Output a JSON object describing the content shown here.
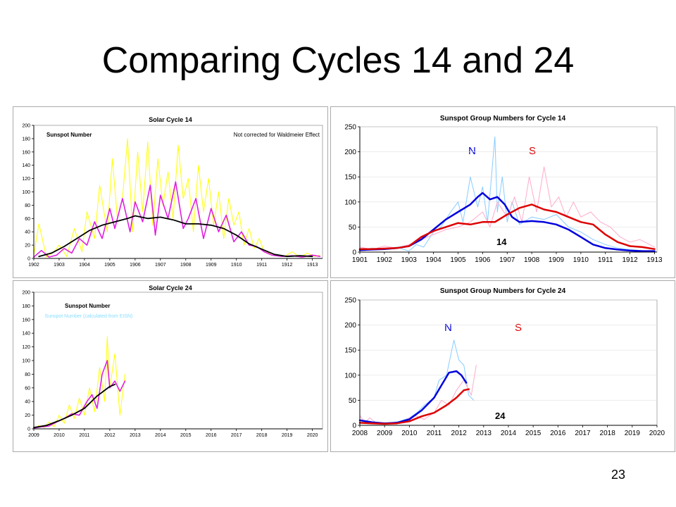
{
  "slide": {
    "title": "Comparing Cycles 14 and 24",
    "page_number": "23"
  },
  "colors": {
    "yellow": "#ffff00",
    "magenta": "#e020e0",
    "black": "#000000",
    "north": "#0000dd",
    "south": "#dd0000",
    "north_light": "#88ccff",
    "south_light": "#ffaacc"
  },
  "chart_data": [
    {
      "id": "c14",
      "type": "line",
      "title": "Solar Cycle 14",
      "series_label": "Sunspot Number",
      "note": "Not corrected for Waldmeier Effect",
      "sublabel": "",
      "xlim": [
        1902,
        1913.4
      ],
      "ylim": [
        0,
        200
      ],
      "x_ticks": [
        1902,
        1903,
        1904,
        1905,
        1906,
        1907,
        1908,
        1909,
        1910,
        1911,
        1912,
        1913
      ],
      "y_ticks": [
        0,
        20,
        40,
        60,
        80,
        100,
        120,
        140,
        160,
        180,
        200
      ],
      "series": [
        {
          "role": "daily",
          "x": [
            1902.0,
            1902.2,
            1902.5,
            1902.8,
            1903.0,
            1903.3,
            1903.6,
            1903.9,
            1904.1,
            1904.4,
            1904.6,
            1904.9,
            1905.1,
            1905.3,
            1905.5,
            1905.7,
            1905.9,
            1906.1,
            1906.3,
            1906.5,
            1906.7,
            1906.9,
            1907.1,
            1907.3,
            1907.5,
            1907.7,
            1907.9,
            1908.1,
            1908.3,
            1908.5,
            1908.7,
            1908.9,
            1909.1,
            1909.3,
            1909.5,
            1909.7,
            1909.9,
            1910.1,
            1910.3,
            1910.5,
            1910.7,
            1910.9,
            1911.1,
            1911.3,
            1911.6,
            1911.9,
            1912.2,
            1912.5,
            1912.8,
            1913.1,
            1913.3
          ],
          "y": [
            5,
            52,
            2,
            10,
            20,
            3,
            45,
            10,
            70,
            30,
            110,
            40,
            150,
            60,
            90,
            180,
            40,
            160,
            70,
            175,
            50,
            150,
            80,
            130,
            60,
            170,
            90,
            120,
            40,
            140,
            70,
            120,
            50,
            100,
            30,
            90,
            50,
            70,
            20,
            45,
            15,
            30,
            10,
            8,
            5,
            3,
            10,
            2,
            8,
            3,
            5
          ]
        },
        {
          "role": "monthly",
          "x": [
            1902.0,
            1902.3,
            1902.6,
            1902.9,
            1903.2,
            1903.5,
            1903.8,
            1904.1,
            1904.4,
            1904.7,
            1905.0,
            1905.2,
            1905.5,
            1905.8,
            1906.0,
            1906.3,
            1906.6,
            1906.8,
            1907.0,
            1907.3,
            1907.6,
            1907.9,
            1908.1,
            1908.4,
            1908.7,
            1909.0,
            1909.3,
            1909.6,
            1909.9,
            1910.2,
            1910.5,
            1910.8,
            1911.1,
            1911.4,
            1911.8,
            1912.2,
            1912.6,
            1913.0,
            1913.3
          ],
          "y": [
            2,
            12,
            2,
            5,
            15,
            8,
            30,
            20,
            55,
            30,
            75,
            45,
            90,
            40,
            85,
            55,
            110,
            35,
            95,
            60,
            115,
            45,
            60,
            90,
            30,
            75,
            40,
            65,
            25,
            40,
            20,
            18,
            10,
            5,
            3,
            4,
            2,
            5,
            3
          ]
        },
        {
          "role": "smoothed",
          "x": [
            1902.2,
            1902.7,
            1903.2,
            1903.7,
            1904.2,
            1904.7,
            1905.2,
            1905.7,
            1906.0,
            1906.5,
            1907.0,
            1907.5,
            1908.0,
            1908.5,
            1909.0,
            1909.5,
            1910.0,
            1910.5,
            1911.0,
            1911.5,
            1912.0,
            1912.5,
            1913.0
          ],
          "y": [
            3,
            8,
            18,
            30,
            42,
            50,
            55,
            60,
            64,
            60,
            62,
            58,
            52,
            52,
            50,
            45,
            35,
            22,
            14,
            6,
            3,
            4,
            3
          ]
        }
      ]
    },
    {
      "id": "g14",
      "type": "line",
      "title": "Sunspot Group Numbers for Cycle 14",
      "cycle_label": "14",
      "north_label": "N",
      "south_label": "S",
      "xlim": [
        1901,
        1913.1
      ],
      "ylim": [
        0,
        250
      ],
      "x_ticks": [
        1901,
        1902,
        1903,
        1904,
        1905,
        1906,
        1907,
        1908,
        1909,
        1910,
        1911,
        1912,
        1913
      ],
      "y_ticks": [
        0,
        50,
        100,
        150,
        200,
        250
      ],
      "series": [
        {
          "role": "north_raw",
          "x": [
            1901.0,
            1901.5,
            1902.0,
            1902.5,
            1903.0,
            1903.3,
            1903.6,
            1904.0,
            1904.3,
            1904.7,
            1905.0,
            1905.2,
            1905.5,
            1905.8,
            1906.0,
            1906.2,
            1906.5,
            1906.6,
            1906.8,
            1907.0,
            1907.2,
            1907.5,
            1908.0,
            1908.5,
            1909.0,
            1909.5,
            1910.0,
            1910.5,
            1911.0,
            1911.5,
            1912.0,
            1912.5,
            1913.0
          ],
          "y": [
            3,
            8,
            5,
            10,
            2,
            15,
            10,
            40,
            50,
            80,
            100,
            60,
            150,
            90,
            130,
            60,
            230,
            80,
            150,
            60,
            100,
            55,
            70,
            65,
            75,
            50,
            40,
            25,
            15,
            8,
            5,
            3,
            2
          ]
        },
        {
          "role": "south_raw",
          "x": [
            1901.0,
            1901.5,
            1902.0,
            1902.5,
            1903.0,
            1903.5,
            1904.0,
            1904.5,
            1905.0,
            1905.5,
            1906.0,
            1906.3,
            1906.6,
            1907.0,
            1907.3,
            1907.6,
            1907.9,
            1908.2,
            1908.5,
            1908.8,
            1909.1,
            1909.4,
            1909.7,
            1910.0,
            1910.4,
            1910.8,
            1911.2,
            1911.6,
            1912.0,
            1912.4,
            1912.8,
            1913.0
          ],
          "y": [
            10,
            5,
            12,
            8,
            15,
            25,
            35,
            45,
            50,
            60,
            80,
            50,
            100,
            70,
            110,
            60,
            150,
            80,
            170,
            90,
            110,
            70,
            100,
            70,
            80,
            60,
            50,
            30,
            20,
            25,
            15,
            10
          ]
        },
        {
          "role": "north_smoothed",
          "x": [
            1901.0,
            1901.5,
            1902.0,
            1902.5,
            1903.0,
            1903.5,
            1904.0,
            1904.5,
            1905.0,
            1905.5,
            1905.8,
            1906.0,
            1906.3,
            1906.6,
            1906.9,
            1907.2,
            1907.5,
            1908.0,
            1908.5,
            1909.0,
            1909.5,
            1910.0,
            1910.5,
            1911.0,
            1911.5,
            1912.0,
            1912.5,
            1913.0
          ],
          "y": [
            4,
            5,
            6,
            8,
            12,
            25,
            45,
            65,
            80,
            95,
            110,
            118,
            105,
            110,
            95,
            70,
            60,
            62,
            60,
            55,
            45,
            30,
            15,
            8,
            5,
            3,
            2,
            2
          ]
        },
        {
          "role": "south_smoothed",
          "x": [
            1901.0,
            1901.5,
            1902.0,
            1902.5,
            1903.0,
            1903.5,
            1904.0,
            1904.5,
            1905.0,
            1905.5,
            1906.0,
            1906.5,
            1907.0,
            1907.5,
            1908.0,
            1908.5,
            1909.0,
            1909.5,
            1910.0,
            1910.5,
            1911.0,
            1911.5,
            1912.0,
            1912.5,
            1913.0
          ],
          "y": [
            6,
            6,
            7,
            8,
            12,
            30,
            42,
            50,
            58,
            55,
            60,
            60,
            75,
            88,
            95,
            85,
            80,
            70,
            60,
            55,
            35,
            20,
            12,
            10,
            6
          ]
        }
      ]
    },
    {
      "id": "c24",
      "type": "line",
      "title": "Solar Cycle 24",
      "series_label": "Sunspot Number",
      "note": "",
      "sublabel": "Sunspot Number (calculated from EISN)",
      "xlim": [
        2009,
        2020.4
      ],
      "ylim": [
        0,
        200
      ],
      "x_ticks": [
        2009,
        2010,
        2011,
        2012,
        2013,
        2014,
        2015,
        2016,
        2017,
        2018,
        2019,
        2020
      ],
      "y_ticks": [
        0,
        20,
        40,
        60,
        80,
        100,
        120,
        140,
        160,
        180,
        200
      ],
      "series": [
        {
          "role": "daily",
          "x": [
            2009.0,
            2009.2,
            2009.4,
            2009.6,
            2009.8,
            2010.0,
            2010.2,
            2010.4,
            2010.6,
            2010.8,
            2011.0,
            2011.2,
            2011.4,
            2011.6,
            2011.8,
            2011.9,
            2012.0,
            2012.2,
            2012.4,
            2012.6
          ],
          "y": [
            0,
            5,
            2,
            10,
            3,
            20,
            8,
            35,
            15,
            45,
            20,
            60,
            25,
            90,
            40,
            135,
            60,
            110,
            20,
            80
          ]
        },
        {
          "role": "monthly",
          "x": [
            2009.0,
            2009.3,
            2009.6,
            2009.9,
            2010.2,
            2010.5,
            2010.8,
            2011.1,
            2011.3,
            2011.5,
            2011.7,
            2011.9,
            2012.0,
            2012.2,
            2012.4,
            2012.6
          ],
          "y": [
            1,
            3,
            4,
            10,
            15,
            22,
            20,
            40,
            50,
            30,
            80,
            100,
            60,
            70,
            55,
            70
          ]
        },
        {
          "role": "smoothed",
          "x": [
            2009.0,
            2009.5,
            2010.0,
            2010.5,
            2011.0,
            2011.5,
            2012.0,
            2012.2
          ],
          "y": [
            2,
            5,
            12,
            20,
            30,
            48,
            62,
            65
          ]
        }
      ]
    },
    {
      "id": "g24",
      "type": "line",
      "title": "Sunspot Group Numbers for Cycle 24",
      "cycle_label": "24",
      "north_label": "N",
      "south_label": "S",
      "xlim": [
        2008,
        2020
      ],
      "ylim": [
        0,
        250
      ],
      "x_ticks": [
        2008,
        2009,
        2010,
        2011,
        2012,
        2013,
        2014,
        2015,
        2016,
        2017,
        2018,
        2019,
        2020
      ],
      "y_ticks": [
        0,
        50,
        100,
        150,
        200,
        250
      ],
      "series": [
        {
          "role": "north_raw",
          "x": [
            2008.0,
            2008.3,
            2008.6,
            2009.0,
            2009.3,
            2009.6,
            2010.0,
            2010.3,
            2010.6,
            2011.0,
            2011.2,
            2011.5,
            2011.8,
            2012.0,
            2012.2,
            2012.4,
            2012.6
          ],
          "y": [
            5,
            8,
            3,
            2,
            5,
            8,
            15,
            25,
            40,
            55,
            90,
            100,
            170,
            130,
            120,
            60,
            50
          ]
        },
        {
          "role": "south_raw",
          "x": [
            2008.0,
            2008.2,
            2008.4,
            2008.7,
            2009.0,
            2009.4,
            2009.8,
            2010.2,
            2010.6,
            2011.0,
            2011.3,
            2011.6,
            2011.9,
            2012.2,
            2012.5,
            2012.7
          ],
          "y": [
            20,
            5,
            15,
            3,
            5,
            4,
            10,
            20,
            12,
            25,
            50,
            40,
            70,
            90,
            60,
            120
          ]
        },
        {
          "role": "north_smoothed",
          "x": [
            2008.0,
            2008.5,
            2009.0,
            2009.5,
            2010.0,
            2010.5,
            2011.0,
            2011.3,
            2011.6,
            2011.9,
            2012.1,
            2012.3
          ],
          "y": [
            10,
            6,
            4,
            5,
            12,
            30,
            55,
            80,
            105,
            108,
            100,
            85
          ]
        },
        {
          "role": "south_smoothed",
          "x": [
            2008.0,
            2008.5,
            2009.0,
            2009.5,
            2010.0,
            2010.5,
            2011.0,
            2011.5,
            2011.9,
            2012.2,
            2012.4
          ],
          "y": [
            5,
            4,
            3,
            4,
            8,
            18,
            25,
            40,
            55,
            70,
            72
          ]
        }
      ]
    }
  ]
}
